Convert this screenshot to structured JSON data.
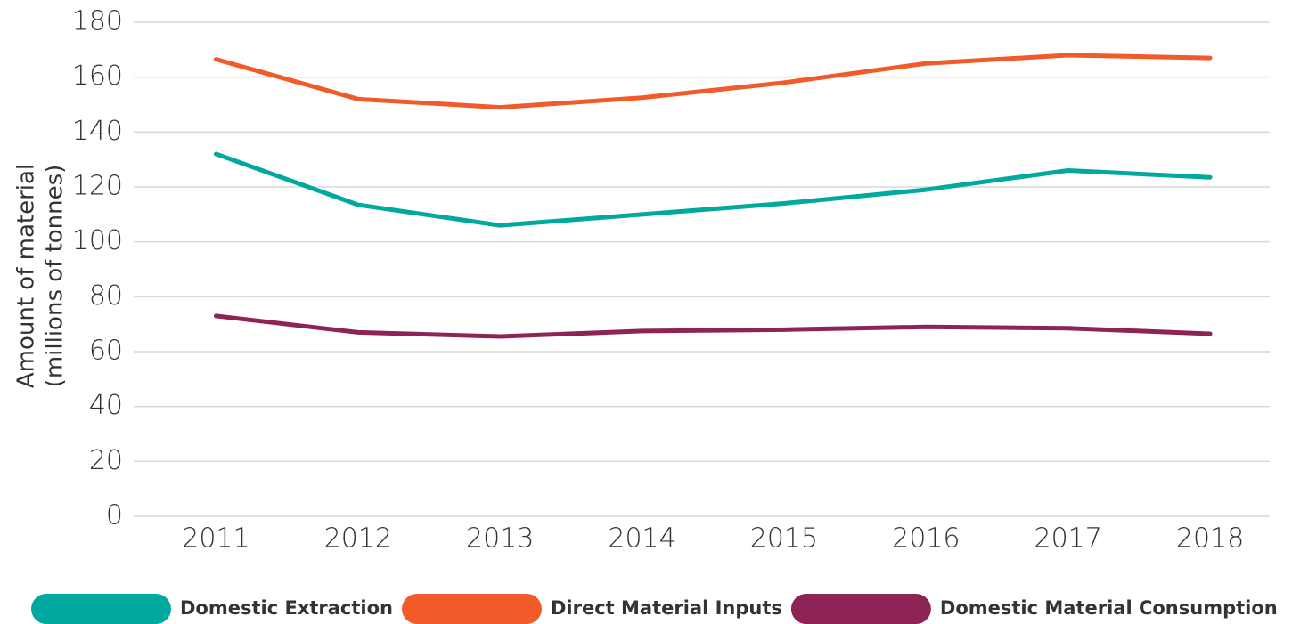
{
  "chart_data": {
    "type": "line",
    "ylabel": [
      "Amount of material",
      "(millions of tonnes)"
    ],
    "categories": [
      "2011",
      "2012",
      "2013",
      "2014",
      "2015",
      "2016",
      "2017",
      "2018"
    ],
    "series": [
      {
        "name": "Domestic Extraction",
        "color": "#00a99d",
        "values": [
          132,
          113.5,
          106,
          110,
          114,
          119,
          126,
          123.5
        ]
      },
      {
        "name": "Direct Material Inputs",
        "color": "#f15a29",
        "values": [
          166.5,
          152,
          149,
          152.5,
          158,
          165,
          168,
          167
        ]
      },
      {
        "name": "Domestic Material Consumption",
        "color": "#8e2456",
        "values": [
          73,
          67,
          65.5,
          67.5,
          68,
          69,
          68.5,
          66.5
        ]
      }
    ],
    "ylim": [
      0,
      180
    ],
    "yticks": [
      0,
      20,
      40,
      60,
      80,
      100,
      120,
      140,
      160,
      180
    ],
    "grid": true,
    "legend": "bottom"
  }
}
